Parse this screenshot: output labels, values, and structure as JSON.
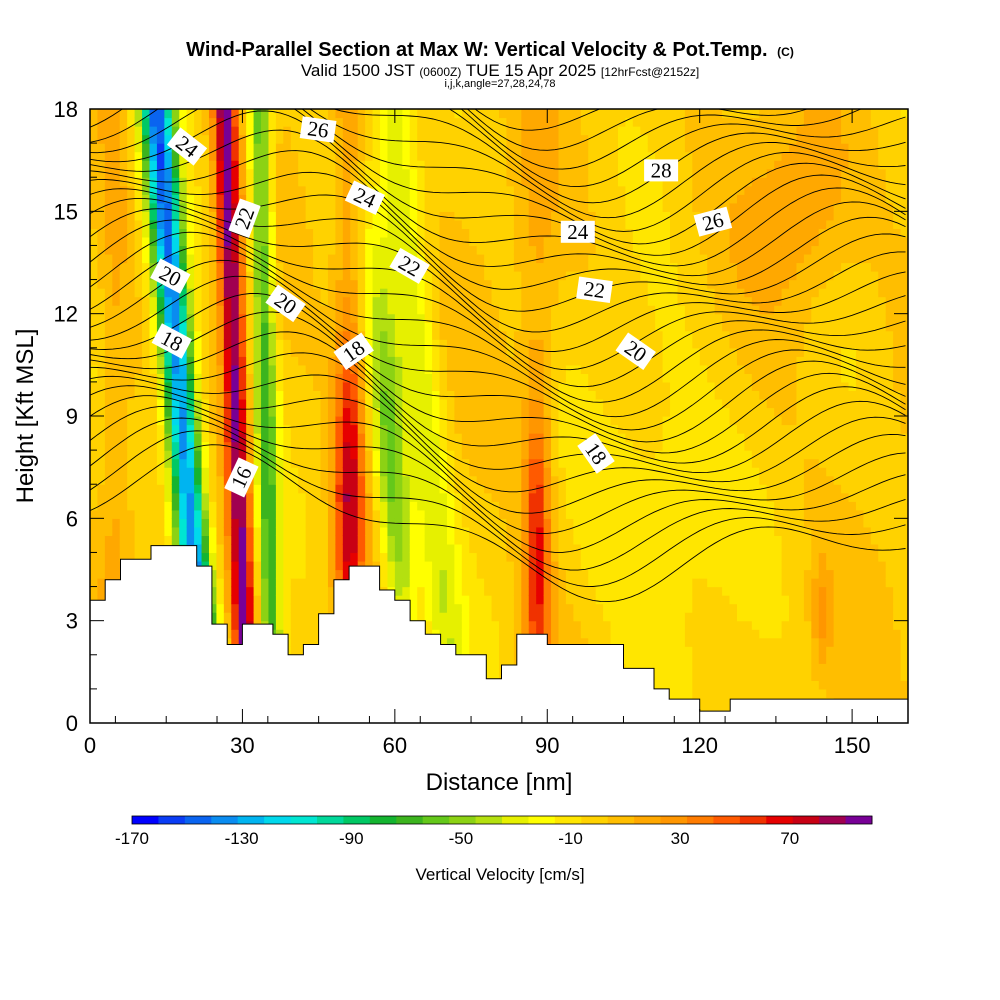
{
  "header": {
    "title": "Wind-Parallel Section at Max W: Vertical Velocity & Pot.Temp.",
    "copyright": "(C)",
    "valid_main": "Valid 1500 JST",
    "valid_utc": "(0600Z)",
    "valid_date": "TUE 15 Apr 2025",
    "forecast": "[12hrFcst@2152z]",
    "indices": "i,j,k,angle=27,28,24,78"
  },
  "chart_data": {
    "type": "heatmap",
    "xlabel": "Distance [nm]",
    "ylabel": "Height [Kft MSL]",
    "xlim": [
      0,
      161
    ],
    "ylim": [
      0,
      18
    ],
    "x_ticks": [
      "0",
      "30",
      "60",
      "90",
      "120",
      "150"
    ],
    "x_tick_values": [
      0,
      30,
      60,
      90,
      120,
      150
    ],
    "y_ticks": [
      "0",
      "3",
      "6",
      "9",
      "12",
      "15",
      "18"
    ],
    "y_tick_values": [
      0,
      3,
      6,
      9,
      12,
      15,
      18
    ],
    "colorbar": {
      "label": "Vertical Velocity [cm/s]",
      "tick_labels": [
        "-170",
        "-130",
        "-90",
        "-50",
        "-10",
        "30",
        "70"
      ],
      "tick_values": [
        -170,
        -130,
        -90,
        -50,
        -10,
        30,
        70
      ],
      "min": -170,
      "max": 100,
      "step": 10,
      "colors": [
        "#0000ff",
        "#0a3cf5",
        "#0a64f0",
        "#0a8cf0",
        "#00b4f0",
        "#00d8ec",
        "#00e6d2",
        "#00d89a",
        "#00c864",
        "#14b430",
        "#3cb41e",
        "#64c81a",
        "#8cd214",
        "#b4e010",
        "#e6f000",
        "#ffff00",
        "#ffe600",
        "#ffd200",
        "#ffbe00",
        "#ffa800",
        "#ff9600",
        "#ff7c00",
        "#ff5a00",
        "#f03200",
        "#e60000",
        "#c80014",
        "#a00050",
        "#780096"
      ]
    },
    "terrain": {
      "x": [
        0,
        3,
        3,
        6,
        6,
        12,
        12,
        21,
        21,
        24,
        24,
        27,
        27,
        30,
        30,
        33,
        33,
        36,
        36,
        39,
        39,
        42,
        42,
        45,
        45,
        48,
        48,
        51,
        51,
        54,
        54,
        57,
        57,
        60,
        60,
        63,
        63,
        66,
        66,
        69,
        69,
        72,
        72,
        78,
        78,
        81,
        81,
        84,
        84,
        87,
        87,
        90,
        90,
        96,
        96,
        105,
        105,
        111,
        111,
        114,
        114,
        117,
        117,
        120,
        120,
        126,
        126,
        141,
        141,
        161
      ],
      "y": [
        3.6,
        3.6,
        4.2,
        4.2,
        4.8,
        4.8,
        5.2,
        5.2,
        4.6,
        4.6,
        2.9,
        2.9,
        2.3,
        2.3,
        2.9,
        2.9,
        2.9,
        2.9,
        2.6,
        2.6,
        2.0,
        2.0,
        2.3,
        2.3,
        3.2,
        3.2,
        4.2,
        4.2,
        4.6,
        4.6,
        4.6,
        4.6,
        3.9,
        3.9,
        3.6,
        3.6,
        3.0,
        3.0,
        2.6,
        2.6,
        2.3,
        2.3,
        2.0,
        2.0,
        1.3,
        1.3,
        1.7,
        1.7,
        2.6,
        2.6,
        2.6,
        2.6,
        2.3,
        2.3,
        2.3,
        2.3,
        1.6,
        1.6,
        1.0,
        1.0,
        0.7,
        0.7,
        0.7,
        0.7,
        0.35,
        0.35,
        0.7,
        0.7,
        0.7,
        0.7
      ]
    },
    "contours_labeled": [
      {
        "label": "16",
        "x": 29.8,
        "y": 7.2,
        "angle": -65
      },
      {
        "label": "18",
        "x": 16.1,
        "y": 11.2,
        "angle": 28
      },
      {
        "label": "18",
        "x": 51.9,
        "y": 10.9,
        "angle": -35
      },
      {
        "label": "18",
        "x": 99.6,
        "y": 7.9,
        "angle": 55
      },
      {
        "label": "20",
        "x": 15.8,
        "y": 13.1,
        "angle": 28
      },
      {
        "label": "20",
        "x": 38.5,
        "y": 12.3,
        "angle": 35
      },
      {
        "label": "20",
        "x": 107.4,
        "y": 10.9,
        "angle": 35
      },
      {
        "label": "22",
        "x": 30.4,
        "y": 14.8,
        "angle": -70
      },
      {
        "label": "22",
        "x": 62.9,
        "y": 13.4,
        "angle": 30
      },
      {
        "label": "22",
        "x": 99.3,
        "y": 12.7,
        "angle": 8
      },
      {
        "label": "24",
        "x": 19.1,
        "y": 16.9,
        "angle": 38
      },
      {
        "label": "24",
        "x": 54.1,
        "y": 15.4,
        "angle": 25
      },
      {
        "label": "24",
        "x": 96.0,
        "y": 14.4,
        "angle": 0
      },
      {
        "label": "26",
        "x": 44.9,
        "y": 17.4,
        "angle": 8
      },
      {
        "label": "26",
        "x": 122.6,
        "y": 14.7,
        "angle": -15
      },
      {
        "label": "28",
        "x": 112.4,
        "y": 16.2,
        "angle": 0
      }
    ]
  }
}
